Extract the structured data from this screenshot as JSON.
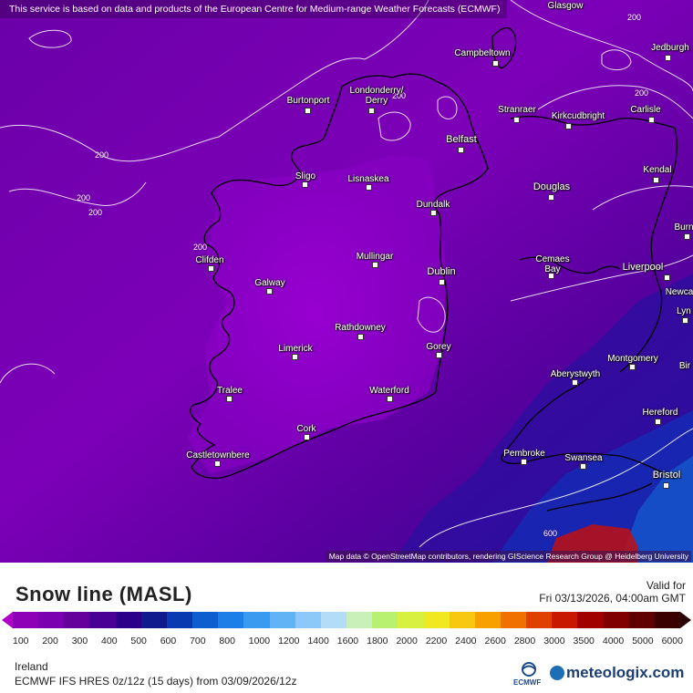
{
  "disclaimer": "This service is based on data and products of the European Centre for Medium-range Weather Forecasts (ECMWF)",
  "attribution": "Map data © OpenStreetMap contributors, rendering GIScience Research Group @ Heidelberg University",
  "contour_labels": [
    "200",
    "200",
    "200",
    "200",
    "200",
    "200",
    "200",
    "600"
  ],
  "cities": [
    {
      "name": "Glasgow"
    },
    {
      "name": "Campbeltown"
    },
    {
      "name": "Jedburgh"
    },
    {
      "name": "Londonderry/"
    },
    {
      "name": "Derry"
    },
    {
      "name": "Burtonport"
    },
    {
      "name": "Stranraer"
    },
    {
      "name": "Kirkcudbright"
    },
    {
      "name": "Carlisle"
    },
    {
      "name": "Belfast"
    },
    {
      "name": "Kendal"
    },
    {
      "name": "Sligo"
    },
    {
      "name": "Lisnaskea"
    },
    {
      "name": "Dundalk"
    },
    {
      "name": "Douglas"
    },
    {
      "name": "Burn"
    },
    {
      "name": "Clifden"
    },
    {
      "name": "Mullingar"
    },
    {
      "name": "Dublin"
    },
    {
      "name": "Cemaes"
    },
    {
      "name": "Bay"
    },
    {
      "name": "Liverpool"
    },
    {
      "name": "Galway"
    },
    {
      "name": "Newca"
    },
    {
      "name": "Lyn"
    },
    {
      "name": "Rathdowney"
    },
    {
      "name": "Limerick"
    },
    {
      "name": "Gorey"
    },
    {
      "name": "Montgomery"
    },
    {
      "name": "Bir"
    },
    {
      "name": "Aberystwyth"
    },
    {
      "name": "Tralee"
    },
    {
      "name": "Waterford"
    },
    {
      "name": "Hereford"
    },
    {
      "name": "Cork"
    },
    {
      "name": "Pembroke"
    },
    {
      "name": "Swansea"
    },
    {
      "name": "Castletownbere"
    },
    {
      "name": "Bristol"
    }
  ],
  "legend": {
    "title": "Snow line (MASL)",
    "valid_label": "Valid for",
    "valid_time": "Fri 03/13/2026, 04:00am GMT",
    "ticks": [
      "100",
      "200",
      "300",
      "400",
      "500",
      "600",
      "700",
      "800",
      "1000",
      "1200",
      "1400",
      "1600",
      "1800",
      "2000",
      "2200",
      "2400",
      "2600",
      "2800",
      "3000",
      "3500",
      "4000",
      "5000",
      "6000"
    ],
    "colors": [
      "#8e00b8",
      "#7a00b0",
      "#66009c",
      "#4a0094",
      "#2c0088",
      "#101a8c",
      "#0a3ab0",
      "#0f5ed0",
      "#1e7ee8",
      "#3a9af0",
      "#62b2f6",
      "#8cc8f8",
      "#b2dcf8",
      "#c8f0b8",
      "#b8f070",
      "#d8f040",
      "#f0e820",
      "#f8c810",
      "#f8a000",
      "#f07000",
      "#e04000",
      "#c81800",
      "#a00000",
      "#800000",
      "#600000",
      "#3a0000"
    ]
  },
  "footer": {
    "region": "Ireland",
    "model": "ECMWF IFS HRES 0z/12z (15 days) from  03/09/2026/12z",
    "ecmwf": "ECMWF",
    "brand": "meteologix.com"
  }
}
